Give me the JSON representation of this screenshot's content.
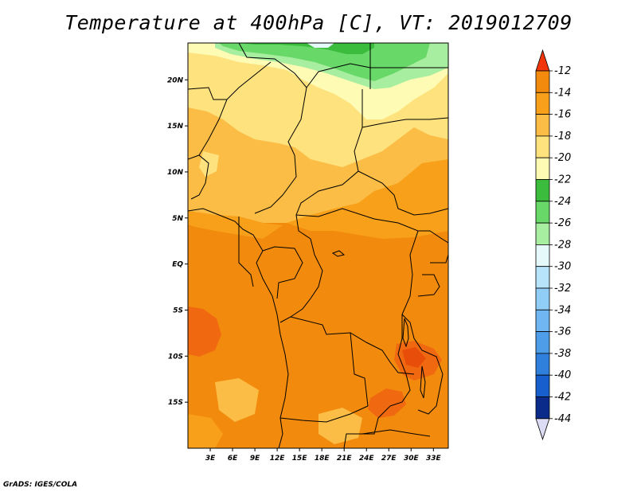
{
  "title": "Temperature at 400hPa [C], VT: 2019012709",
  "credit": "GrADS: IGES/COLA",
  "map": {
    "lon_range": [
      0,
      35
    ],
    "lat_range": [
      -20,
      24
    ],
    "y_ticks": [
      {
        "lat": 20,
        "label": "20N"
      },
      {
        "lat": 15,
        "label": "15N"
      },
      {
        "lat": 10,
        "label": "10N"
      },
      {
        "lat": 5,
        "label": "5N"
      },
      {
        "lat": 0,
        "label": "EQ"
      },
      {
        "lat": -5,
        "label": "5S"
      },
      {
        "lat": -10,
        "label": "10S"
      },
      {
        "lat": -15,
        "label": "15S"
      }
    ],
    "x_ticks": [
      {
        "lon": 3,
        "label": "3E"
      },
      {
        "lon": 6,
        "label": "6E"
      },
      {
        "lon": 9,
        "label": "9E"
      },
      {
        "lon": 12,
        "label": "12E"
      },
      {
        "lon": 15,
        "label": "15E"
      },
      {
        "lon": 18,
        "label": "18E"
      },
      {
        "lon": 21,
        "label": "21E"
      },
      {
        "lon": 24,
        "label": "24E"
      },
      {
        "lon": 27,
        "label": "27E"
      },
      {
        "lon": 30,
        "label": "30E"
      },
      {
        "lon": 33,
        "label": "33E"
      }
    ]
  },
  "colorbar": {
    "levels": [
      {
        "label": "-12",
        "color": "#e84d0a"
      },
      {
        "label": "-14",
        "color": "#f28b0d"
      },
      {
        "label": "-16",
        "color": "#f8a019"
      },
      {
        "label": "-18",
        "color": "#fbbd45"
      },
      {
        "label": "-20",
        "color": "#fde27e"
      },
      {
        "label": "-22",
        "color": "#fefbb4"
      },
      {
        "label": "-24",
        "color": "#3cbc3c"
      },
      {
        "label": "-26",
        "color": "#68d968"
      },
      {
        "label": "-28",
        "color": "#a8eea0"
      },
      {
        "label": "-30",
        "color": "#e5f9fa"
      },
      {
        "label": "-32",
        "color": "#b8e4fb"
      },
      {
        "label": "-34",
        "color": "#90cdf7"
      },
      {
        "label": "-36",
        "color": "#6fb6f2"
      },
      {
        "label": "-38",
        "color": "#4d9de9"
      },
      {
        "label": "-40",
        "color": "#2f7fdd"
      },
      {
        "label": "-42",
        "color": "#165fcc"
      },
      {
        "label": "-44",
        "color": "#0b2b8a"
      }
    ],
    "top_arrow_color": "#f0360a",
    "bottom_arrow_color": "#dcdcf4"
  },
  "colors": {
    "dominant": "#f8a019",
    "warmest": "#f0680f",
    "outline": "#000000"
  }
}
